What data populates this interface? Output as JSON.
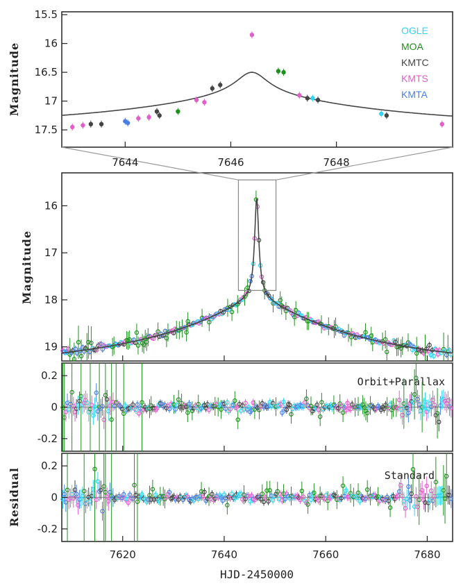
{
  "chart_data": [
    {
      "panel": "zoom",
      "type": "line",
      "ylabel": "Magnitude",
      "xlim": [
        7642.8,
        7650.2
      ],
      "ylim": [
        17.8,
        15.45
      ],
      "y_reversed": true,
      "xticks": [
        7644,
        7646,
        7648
      ],
      "yticks": [
        15.5,
        16,
        16.5,
        17,
        17.5
      ],
      "ytick_labels": [
        "15.5",
        "16",
        "16.5",
        "17",
        "17.5"
      ],
      "legend_placement": "top-right",
      "legend": [
        {
          "name": "OGLE",
          "color": "#33d4ee"
        },
        {
          "name": "MOA",
          "color": "#1f8f1f"
        },
        {
          "name": "KMTC",
          "color": "#444444"
        },
        {
          "name": "KMTS",
          "color": "#e060c8"
        },
        {
          "name": "KMTA",
          "color": "#4a7fe0"
        }
      ],
      "model": {
        "color": "#444444",
        "t0": 7646.4,
        "peak_mag": 15.85,
        "base_mag": 17.45
      },
      "points": [
        {
          "x": 7643.0,
          "y": 17.45,
          "s": "KMTS"
        },
        {
          "x": 7643.2,
          "y": 17.42,
          "s": "KMTS"
        },
        {
          "x": 7643.35,
          "y": 17.4,
          "s": "KMTC"
        },
        {
          "x": 7643.55,
          "y": 17.4,
          "s": "KMTC"
        },
        {
          "x": 7644.0,
          "y": 17.35,
          "s": "KMTA"
        },
        {
          "x": 7644.05,
          "y": 17.38,
          "s": "KMTA"
        },
        {
          "x": 7644.25,
          "y": 17.3,
          "s": "KMTS"
        },
        {
          "x": 7644.45,
          "y": 17.28,
          "s": "KMTS"
        },
        {
          "x": 7644.6,
          "y": 17.18,
          "s": "KMTC"
        },
        {
          "x": 7644.65,
          "y": 17.25,
          "s": "KMTC"
        },
        {
          "x": 7645.0,
          "y": 17.18,
          "s": "MOA"
        },
        {
          "x": 7645.35,
          "y": 16.98,
          "s": "KMTS"
        },
        {
          "x": 7645.5,
          "y": 17.02,
          "s": "KMTS"
        },
        {
          "x": 7645.65,
          "y": 16.78,
          "s": "KMTC"
        },
        {
          "x": 7645.8,
          "y": 16.72,
          "s": "KMTC"
        },
        {
          "x": 7646.4,
          "y": 15.85,
          "s": "KMTS"
        },
        {
          "x": 7646.9,
          "y": 16.48,
          "s": "MOA"
        },
        {
          "x": 7647.0,
          "y": 16.5,
          "s": "MOA"
        },
        {
          "x": 7647.3,
          "y": 16.9,
          "s": "KMTS"
        },
        {
          "x": 7647.45,
          "y": 16.95,
          "s": "KMTC"
        },
        {
          "x": 7647.55,
          "y": 16.95,
          "s": "OGLE"
        },
        {
          "x": 7647.65,
          "y": 16.98,
          "s": "KMTC"
        },
        {
          "x": 7648.85,
          "y": 17.22,
          "s": "OGLE"
        },
        {
          "x": 7648.95,
          "y": 17.25,
          "s": "KMTC"
        },
        {
          "x": 7650.0,
          "y": 17.4,
          "s": "KMTS"
        }
      ]
    },
    {
      "panel": "main",
      "type": "line",
      "ylabel": "Magnitude",
      "xlim": [
        7608,
        7685
      ],
      "ylim": [
        19.3,
        15.3
      ],
      "y_reversed": true,
      "yticks": [
        16,
        17,
        18,
        19
      ],
      "ytick_labels": [
        "16",
        "17",
        "18",
        "19"
      ],
      "zoom_box": {
        "x": [
          7642.8,
          7650.2
        ],
        "y": [
          15.45,
          17.8
        ]
      },
      "model": {
        "color": "#444444",
        "t0": 7646.4,
        "peak_mag": 15.85,
        "base_mag": 19.4
      }
    },
    {
      "panel": "residual_orbit_parallax",
      "type": "scatter",
      "annotation": "Orbit+Parallax",
      "xlim": [
        7608,
        7685
      ],
      "ylim": [
        -0.28,
        0.28
      ],
      "yticks": [
        0.2,
        0,
        -0.2
      ],
      "ytick_labels": [
        "0.2",
        "0",
        "-0.2"
      ],
      "zero_line": true
    },
    {
      "panel": "residual_standard",
      "type": "scatter",
      "annotation": "Standard",
      "ylabel": "Residual",
      "xlabel": "HJD-2450000",
      "xlim": [
        7608,
        7685
      ],
      "ylim": [
        -0.28,
        0.28
      ],
      "xticks": [
        7620,
        7640,
        7660,
        7680
      ],
      "xtick_labels": [
        "7620",
        "7640",
        "7660",
        "7680"
      ],
      "yticks": [
        0.2,
        0,
        -0.2
      ],
      "ytick_labels": [
        "0.2",
        "0",
        "-0.2"
      ],
      "zero_line": true
    }
  ],
  "labels": {
    "zoom_ylabel": "Magnitude",
    "main_ylabel": "Magnitude",
    "residual_ylabel": "Residual",
    "xlabel": "HJD-2450000",
    "annot_orbit": "Orbit+Parallax",
    "annot_standard": "Standard"
  }
}
